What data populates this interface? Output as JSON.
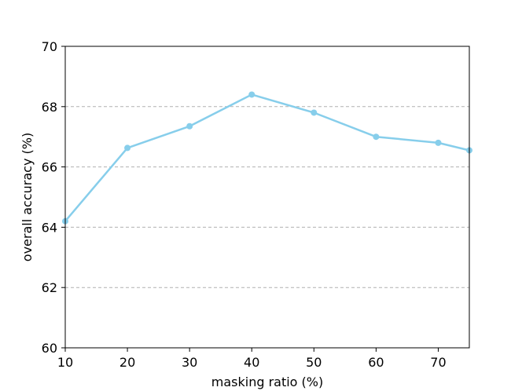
{
  "chart_data": {
    "type": "line",
    "title": "",
    "xlabel": "masking ratio (%)",
    "ylabel": "overall accuracy (%)",
    "xlim": [
      10,
      75
    ],
    "ylim": [
      60,
      70
    ],
    "x_ticks": [
      10,
      20,
      30,
      40,
      50,
      60,
      70
    ],
    "y_ticks": [
      60,
      62,
      64,
      66,
      68,
      70
    ],
    "grid": "horizontal dashed (y=64, 66, 68)",
    "legend": "none",
    "series": [
      {
        "color": "#87CEEB",
        "x": [
          10,
          20,
          30,
          40,
          50,
          60,
          70,
          75
        ],
        "y": [
          64.2,
          66.63,
          67.35,
          68.4,
          67.8,
          67.0,
          66.8,
          66.55
        ]
      }
    ]
  }
}
